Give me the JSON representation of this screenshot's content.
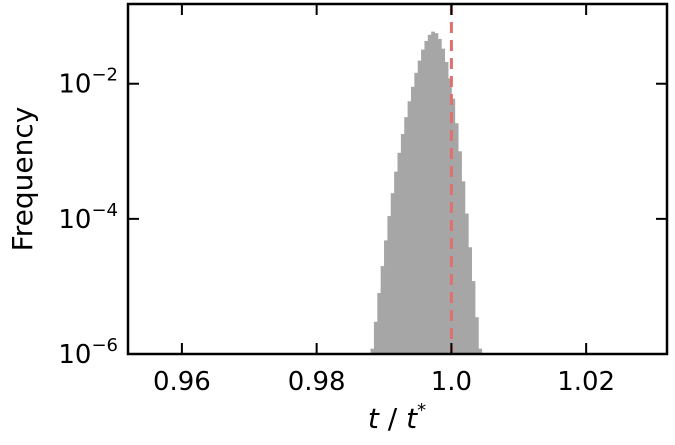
{
  "chart_data": {
    "type": "bar",
    "ylabel": "Frequency",
    "xlabel_parts": {
      "var": "t",
      "sep": " / ",
      "var2": "t",
      "sup": "*"
    },
    "xlim": [
      0.952,
      1.032
    ],
    "ylim_log10": [
      -6,
      -0.82
    ],
    "yscale": "log",
    "grid": false,
    "x_ticks": [
      {
        "value": 0.96,
        "label": "0.96"
      },
      {
        "value": 0.98,
        "label": "0.98"
      },
      {
        "value": 1.0,
        "label": "1.0"
      },
      {
        "value": 1.02,
        "label": "1.02"
      }
    ],
    "y_ticks": [
      {
        "exp": -6,
        "base": "10",
        "sup": "−6"
      },
      {
        "exp": -4,
        "base": "10",
        "sup": "−4"
      },
      {
        "exp": -2,
        "base": "10",
        "sup": "−2"
      }
    ],
    "reference_line": {
      "x": 1.0,
      "style": "dashed",
      "color": "#e07070"
    },
    "bar_color": "#a6a6a6",
    "histogram": {
      "bin_width": 0.0005,
      "bins": [
        [
          0.988,
          1.2e-06
        ],
        [
          0.9885,
          3e-06
        ],
        [
          0.989,
          8e-06
        ],
        [
          0.9895,
          2e-05
        ],
        [
          0.99,
          4.8e-05
        ],
        [
          0.9905,
          0.00011
        ],
        [
          0.991,
          0.00024
        ],
        [
          0.9915,
          0.0005
        ],
        [
          0.992,
          0.00095
        ],
        [
          0.9925,
          0.0018
        ],
        [
          0.993,
          0.0032
        ],
        [
          0.9935,
          0.0055
        ],
        [
          0.994,
          0.009
        ],
        [
          0.9945,
          0.0145
        ],
        [
          0.995,
          0.022
        ],
        [
          0.9955,
          0.032
        ],
        [
          0.996,
          0.043
        ],
        [
          0.9965,
          0.053
        ],
        [
          0.997,
          0.059
        ],
        [
          0.9975,
          0.056
        ],
        [
          0.998,
          0.046
        ],
        [
          0.9985,
          0.033
        ],
        [
          0.999,
          0.021
        ],
        [
          0.9995,
          0.012
        ],
        [
          1.0,
          0.006
        ],
        [
          1.0005,
          0.0026
        ],
        [
          1.001,
          0.001
        ],
        [
          1.0015,
          0.00036
        ],
        [
          1.002,
          0.00012
        ],
        [
          1.0025,
          3.8e-05
        ],
        [
          1.003,
          1.2e-05
        ],
        [
          1.0035,
          3.5e-06
        ],
        [
          1.004,
          1.2e-06
        ]
      ]
    }
  }
}
